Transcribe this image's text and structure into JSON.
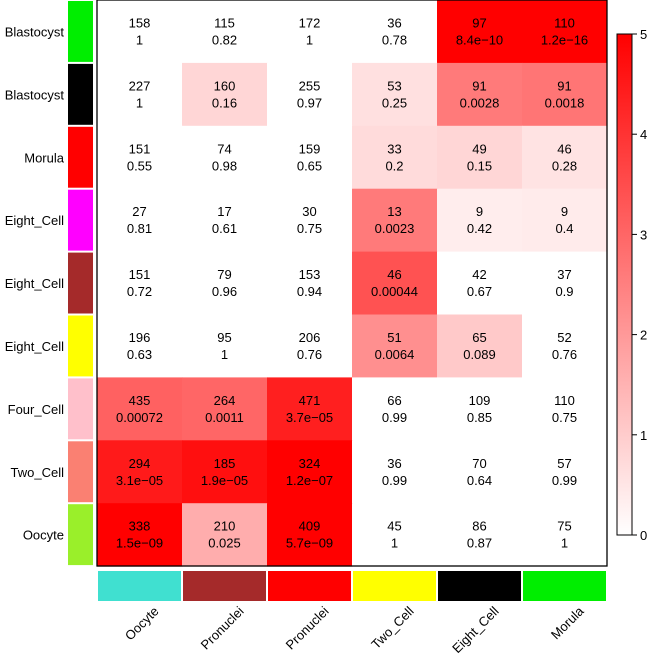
{
  "chart_data": {
    "type": "heatmap",
    "title": "",
    "rows": [
      "Blastocyst",
      "Blastocyst",
      "Morula",
      "Eight_Cell",
      "Eight_Cell",
      "Eight_Cell",
      "Four_Cell",
      "Two_Cell",
      "Oocyte"
    ],
    "row_colors": [
      "#00ee00",
      "#000000",
      "#ff0000",
      "#ff00ff",
      "#a52a2a",
      "#ffff00",
      "#ffc0cb",
      "#fa8072",
      "#9aef2a"
    ],
    "columns": [
      "Oocyte",
      "Pronuclei",
      "Pronuclei",
      "Two_Cell",
      "Eight_Cell",
      "Morula"
    ],
    "column_colors": [
      "#40e0d0",
      "#a52a2a",
      "#ff0000",
      "#ffff00",
      "#000000",
      "#00ee00"
    ],
    "counts": [
      [
        "158",
        "115",
        "172",
        "36",
        "97",
        "110"
      ],
      [
        "227",
        "160",
        "255",
        "53",
        "91",
        "91"
      ],
      [
        "151",
        "74",
        "159",
        "33",
        "49",
        "46"
      ],
      [
        "27",
        "17",
        "30",
        "13",
        "9",
        "9"
      ],
      [
        "151",
        "79",
        "153",
        "46",
        "42",
        "37"
      ],
      [
        "196",
        "95",
        "206",
        "51",
        "65",
        "52"
      ],
      [
        "435",
        "264",
        "471",
        "66",
        "109",
        "110"
      ],
      [
        "294",
        "185",
        "324",
        "36",
        "70",
        "57"
      ],
      [
        "338",
        "210",
        "409",
        "45",
        "86",
        "75"
      ]
    ],
    "pvalues": [
      [
        "1",
        "0.82",
        "1",
        "0.78",
        "8.4e−10",
        "1.2e−16"
      ],
      [
        "1",
        "0.16",
        "0.97",
        "0.25",
        "0.0028",
        "0.0018"
      ],
      [
        "0.55",
        "0.98",
        "0.65",
        "0.2",
        "0.15",
        "0.28"
      ],
      [
        "0.81",
        "0.61",
        "0.75",
        "0.0023",
        "0.42",
        "0.4"
      ],
      [
        "0.72",
        "0.96",
        "0.94",
        "0.00044",
        "0.67",
        "0.9"
      ],
      [
        "0.63",
        "1",
        "0.76",
        "0.0064",
        "0.089",
        "0.76"
      ],
      [
        "0.00072",
        "0.0011",
        "3.7e−05",
        "0.99",
        "0.85",
        "0.75"
      ],
      [
        "3.1e−05",
        "1.9e−05",
        "1.2e−07",
        "0.99",
        "0.64",
        "0.99"
      ],
      [
        "1.5e−09",
        "0.025",
        "5.7e−09",
        "1",
        "0.87",
        "1"
      ]
    ],
    "intensity": [
      [
        0,
        0,
        0,
        0,
        5,
        5
      ],
      [
        0,
        0.8,
        0,
        0.6,
        2.6,
        2.7
      ],
      [
        0,
        0,
        0,
        0.7,
        0.8,
        0.55
      ],
      [
        0,
        0,
        0,
        2.6,
        0.35,
        0.4
      ],
      [
        0,
        0,
        0,
        3.4,
        0,
        0
      ],
      [
        0,
        0,
        0,
        2.2,
        1.05,
        0
      ],
      [
        3.1,
        3.0,
        4.4,
        0,
        0,
        0
      ],
      [
        4.5,
        4.7,
        5,
        0,
        0,
        0
      ],
      [
        5,
        1.6,
        5,
        0,
        0,
        0
      ]
    ],
    "colorbar": {
      "min": 0,
      "max": 5,
      "ticks": [
        "0",
        "1",
        "2",
        "3",
        "4",
        "5"
      ],
      "low_color": "#ffffff",
      "high_color": "#ff0000"
    }
  }
}
